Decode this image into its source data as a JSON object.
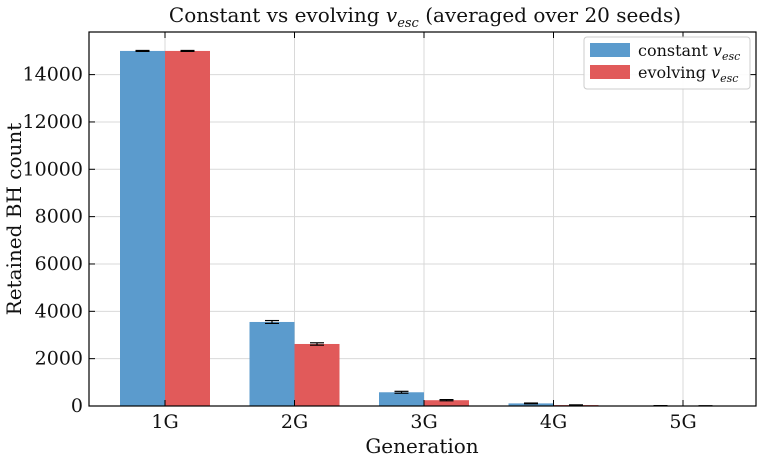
{
  "chart_data": {
    "type": "bar",
    "title": "Constant vs evolving ",
    "title_var": "v",
    "title_sub": "esc",
    "title_rest": " (averaged over 20 seeds)",
    "xlabel": "Generation",
    "ylabel": "Retained BH count",
    "categories": [
      "1G",
      "2G",
      "3G",
      "4G",
      "5G"
    ],
    "ylim": [
      0,
      15800
    ],
    "yticks": [
      0,
      2000,
      4000,
      6000,
      8000,
      10000,
      12000,
      14000
    ],
    "ytick_labels": [
      "0",
      "2000",
      "4000",
      "6000",
      "8000",
      "10000",
      "12000",
      "14000"
    ],
    "grid": true,
    "legend_position": "top-right",
    "series": [
      {
        "name": "constant ",
        "name_var": "v",
        "name_sub": "esc",
        "color": "#5b9bcd",
        "values": [
          15000,
          3550,
          580,
          110,
          12
        ],
        "errors": [
          20,
          60,
          40,
          15,
          5
        ]
      },
      {
        "name": "evolving ",
        "name_var": "v",
        "name_sub": "esc",
        "color": "#e15a5a",
        "values": [
          15000,
          2620,
          245,
          40,
          6
        ],
        "errors": [
          20,
          50,
          25,
          8,
          3
        ]
      }
    ]
  }
}
